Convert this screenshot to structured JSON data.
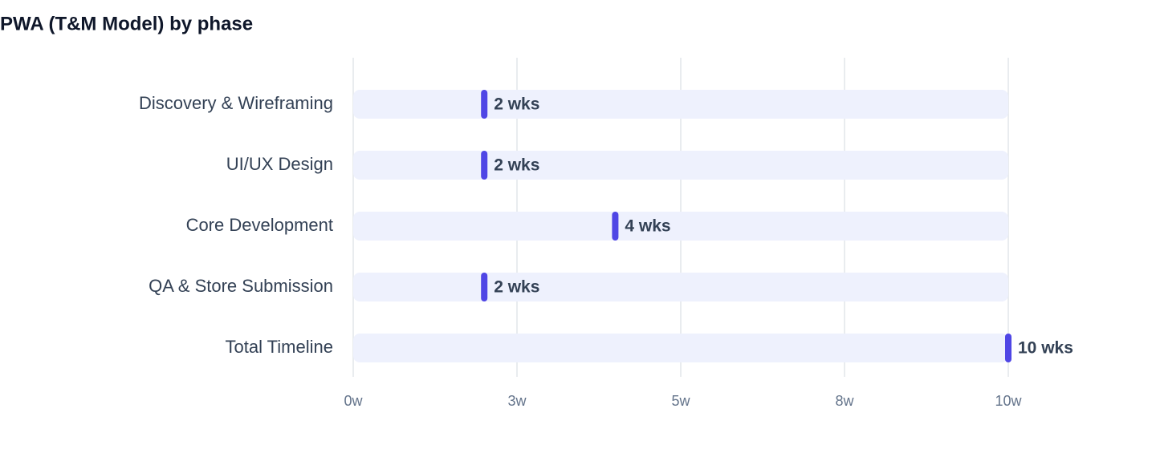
{
  "chart_data": {
    "type": "bar",
    "title": "PWA (T&M Model) by phase",
    "categories": [
      "Discovery & Wireframing",
      "UI/UX Design",
      "Core Development",
      "QA & Store Submission",
      "Total Timeline"
    ],
    "values": [
      2,
      2,
      4,
      2,
      10
    ],
    "value_labels": [
      "2 wks",
      "2 wks",
      "4 wks",
      "2 wks",
      "10 wks"
    ],
    "color": "#4f46e5",
    "xlim": [
      0,
      10
    ],
    "xticks": [
      {
        "value": 0,
        "label": "0w"
      },
      {
        "value": 2.5,
        "label": "3w"
      },
      {
        "value": 5,
        "label": "5w"
      },
      {
        "value": 7.5,
        "label": "8w"
      },
      {
        "value": 10,
        "label": "10w"
      }
    ],
    "grid": true
  }
}
